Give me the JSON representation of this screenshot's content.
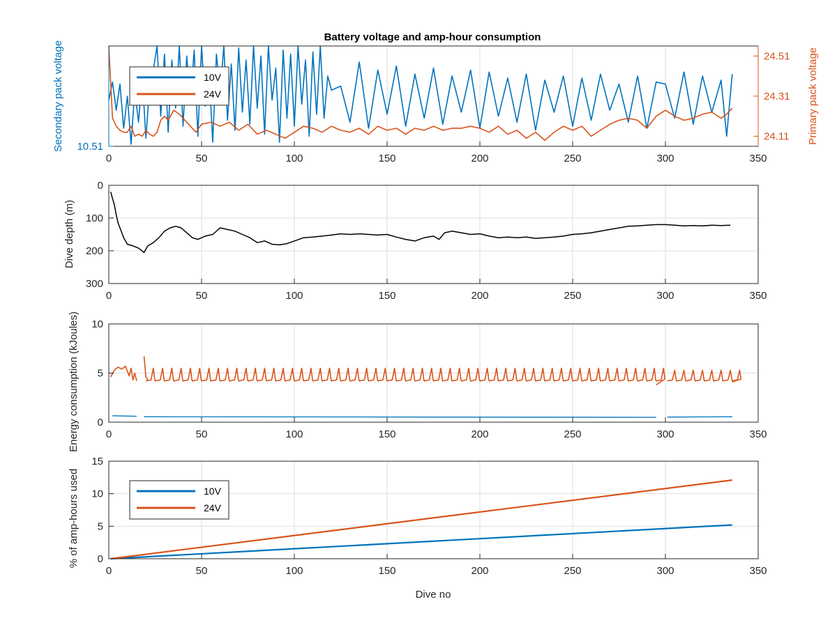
{
  "figure": {
    "xlabel": "Dive no",
    "colors": {
      "blue": "#0072BD",
      "orange": "#D95319",
      "black": "#000000",
      "grid": "#dedede",
      "axis": "#262626"
    }
  },
  "chart_data": [
    {
      "type": "line",
      "title": "Battery voltage and amp-hour consumption",
      "xlabel": "",
      "ylabel_left": "Secondary pack voltage",
      "ylabel_right": "Primary pack voltage",
      "xlim": [
        0,
        350
      ],
      "xticks": [
        0,
        50,
        100,
        150,
        200,
        250,
        300,
        350
      ],
      "ylim_left": [
        10.51,
        10.56
      ],
      "yticks_left": [
        10.51
      ],
      "ylim_right": [
        24.06,
        24.56
      ],
      "yticks_right": [
        24.11,
        24.31,
        24.51
      ],
      "legend": {
        "position": "top-left",
        "entries": [
          "10V",
          "24V"
        ]
      },
      "series": [
        {
          "name": "10V",
          "axis": "left",
          "color": "#0072BD",
          "x": [
            0,
            2,
            4,
            6,
            8,
            10,
            12,
            14,
            16,
            18,
            20,
            22,
            24,
            26,
            28,
            30,
            32,
            34,
            36,
            38,
            40,
            42,
            44,
            46,
            48,
            50,
            52,
            54,
            56,
            58,
            60,
            62,
            64,
            66,
            68,
            70,
            72,
            74,
            76,
            78,
            80,
            82,
            84,
            86,
            88,
            90,
            92,
            94,
            96,
            98,
            100,
            102,
            104,
            106,
            108,
            110,
            112,
            114,
            116,
            118,
            120,
            125,
            130,
            135,
            140,
            145,
            150,
            155,
            160,
            165,
            170,
            175,
            180,
            185,
            190,
            195,
            200,
            205,
            210,
            215,
            220,
            225,
            230,
            235,
            240,
            245,
            250,
            255,
            260,
            265,
            270,
            275,
            280,
            285,
            290,
            295,
            300,
            305,
            310,
            315,
            320,
            325,
            330,
            333,
            336
          ],
          "y": [
            10.533,
            10.542,
            10.528,
            10.541,
            10.519,
            10.535,
            10.511,
            10.538,
            10.522,
            10.545,
            10.514,
            10.54,
            10.548,
            10.56,
            10.525,
            10.556,
            10.517,
            10.553,
            10.529,
            10.56,
            10.52,
            10.555,
            10.532,
            10.558,
            10.515,
            10.56,
            10.53,
            10.548,
            10.512,
            10.556,
            10.536,
            10.56,
            10.523,
            10.551,
            10.518,
            10.559,
            10.527,
            10.553,
            10.521,
            10.56,
            10.529,
            10.555,
            10.516,
            10.56,
            10.533,
            10.549,
            10.512,
            10.558,
            10.524,
            10.556,
            10.52,
            10.56,
            10.531,
            10.553,
            10.515,
            10.557,
            10.526,
            10.56,
            10.524,
            10.545,
            10.538,
            10.54,
            10.522,
            10.552,
            10.519,
            10.548,
            10.526,
            10.55,
            10.52,
            10.546,
            10.524,
            10.549,
            10.521,
            10.545,
            10.527,
            10.548,
            10.519,
            10.547,
            10.525,
            10.544,
            10.522,
            10.546,
            10.518,
            10.543,
            10.527,
            10.545,
            10.52,
            10.544,
            10.523,
            10.546,
            10.528,
            10.541,
            10.522,
            10.545,
            10.519,
            10.542,
            10.541,
            10.524,
            10.547,
            10.521,
            10.545,
            10.527,
            10.543,
            10.515,
            10.546
          ]
        },
        {
          "name": "24V",
          "axis": "right",
          "color": "#D95319",
          "x": [
            0,
            2,
            4,
            6,
            8,
            10,
            12,
            14,
            16,
            18,
            20,
            22,
            24,
            26,
            28,
            30,
            32,
            35,
            38,
            41,
            44,
            47,
            50,
            55,
            60,
            65,
            70,
            75,
            80,
            85,
            90,
            95,
            100,
            105,
            110,
            115,
            120,
            125,
            130,
            135,
            140,
            145,
            150,
            155,
            160,
            165,
            170,
            175,
            180,
            185,
            190,
            195,
            200,
            205,
            210,
            215,
            220,
            225,
            230,
            235,
            240,
            245,
            250,
            255,
            260,
            265,
            270,
            275,
            280,
            285,
            290,
            295,
            300,
            305,
            310,
            315,
            320,
            325,
            330,
            333,
            336
          ],
          "y": [
            24.56,
            24.2,
            24.16,
            24.14,
            24.13,
            24.13,
            24.16,
            24.11,
            24.12,
            24.11,
            24.14,
            24.12,
            24.11,
            24.13,
            24.19,
            24.21,
            24.19,
            24.24,
            24.22,
            24.19,
            24.16,
            24.13,
            24.17,
            24.18,
            24.16,
            24.18,
            24.14,
            24.17,
            24.12,
            24.14,
            24.12,
            24.1,
            24.13,
            24.16,
            24.15,
            24.13,
            24.16,
            24.14,
            24.13,
            24.15,
            24.12,
            24.16,
            24.14,
            24.15,
            24.12,
            24.15,
            24.14,
            24.16,
            24.14,
            24.15,
            24.15,
            24.16,
            24.15,
            24.13,
            24.16,
            24.12,
            24.14,
            24.1,
            24.13,
            24.09,
            24.13,
            24.16,
            24.14,
            24.16,
            24.11,
            24.14,
            24.17,
            24.19,
            24.2,
            24.19,
            24.15,
            24.21,
            24.24,
            24.21,
            24.19,
            24.2,
            24.22,
            24.23,
            24.2,
            24.22,
            24.25
          ]
        }
      ]
    },
    {
      "type": "line",
      "title": "",
      "xlabel": "",
      "ylabel": "Dive depth (m)",
      "xlim": [
        0,
        350
      ],
      "xticks": [
        0,
        50,
        100,
        150,
        200,
        250,
        300,
        350
      ],
      "ylim": [
        0,
        300
      ],
      "yticks": [
        0,
        100,
        200,
        300
      ],
      "y_reversed": true,
      "series": [
        {
          "color": "#000000",
          "x": [
            1,
            2,
            3,
            4,
            5,
            6,
            8,
            10,
            13,
            16,
            19,
            21,
            24,
            27,
            30,
            33,
            36,
            39,
            42,
            45,
            48,
            52,
            56,
            60,
            64,
            68,
            72,
            76,
            80,
            84,
            88,
            92,
            96,
            100,
            105,
            110,
            115,
            120,
            125,
            130,
            135,
            140,
            145,
            150,
            155,
            160,
            165,
            170,
            175,
            178,
            181,
            185,
            190,
            195,
            200,
            205,
            210,
            215,
            220,
            225,
            230,
            235,
            240,
            245,
            250,
            255,
            260,
            265,
            270,
            275,
            280,
            285,
            290,
            295,
            300,
            305,
            310,
            315,
            320,
            325,
            330,
            335
          ],
          "y": [
            20,
            40,
            60,
            90,
            115,
            130,
            160,
            180,
            185,
            192,
            205,
            185,
            175,
            160,
            140,
            130,
            125,
            130,
            145,
            160,
            165,
            155,
            150,
            130,
            135,
            140,
            150,
            160,
            175,
            170,
            180,
            182,
            178,
            170,
            160,
            158,
            155,
            152,
            148,
            150,
            148,
            150,
            152,
            150,
            158,
            165,
            170,
            160,
            155,
            165,
            145,
            140,
            145,
            150,
            148,
            155,
            160,
            158,
            160,
            158,
            162,
            160,
            158,
            155,
            150,
            148,
            145,
            140,
            135,
            130,
            125,
            124,
            122,
            120,
            120,
            122,
            124,
            123,
            124,
            122,
            123,
            122
          ]
        }
      ]
    },
    {
      "type": "line",
      "title": "",
      "xlabel": "",
      "ylabel": "Energy consumption (kJoules)",
      "xlim": [
        0,
        350
      ],
      "xticks": [
        0,
        50,
        100,
        150,
        200,
        250,
        300,
        350
      ],
      "ylim": [
        0,
        10
      ],
      "yticks": [
        0,
        5,
        10
      ],
      "series": [
        {
          "color": "#D95319",
          "segments": [
            {
              "x": [
                1,
                3,
                5,
                7,
                9,
                11,
                12,
                13,
                14,
                15
              ],
              "y": [
                4.6,
                5.3,
                5.6,
                5.4,
                5.7,
                4.7,
                5.5,
                4.3,
                5.0,
                4.2
              ]
            },
            {
              "x": [
                19,
                20,
                21
              ],
              "y": [
                6.7,
                4.6,
                4.3
              ]
            },
            {
              "period": 5,
              "x_start": 20,
              "x_end": 295,
              "base": 4.2,
              "peak": 5.5,
              "end_y": 3.8
            },
            {
              "period": 5,
              "x_start": 301,
              "x_end": 336,
              "base": 4.2,
              "peak": 5.3,
              "end_y": 4.1
            }
          ]
        },
        {
          "color": "#0072BD",
          "segments": [
            {
              "x": [
                2,
                15
              ],
              "y": [
                0.65,
                0.6
              ]
            },
            {
              "x": [
                19,
                295
              ],
              "y": [
                0.55,
                0.5
              ]
            },
            {
              "x": [
                301,
                336
              ],
              "y": [
                0.52,
                0.55
              ]
            }
          ]
        }
      ]
    },
    {
      "type": "line",
      "title": "",
      "xlabel": "Dive no",
      "ylabel": "% of amp-hours used",
      "xlim": [
        0,
        350
      ],
      "xticks": [
        0,
        50,
        100,
        150,
        200,
        250,
        300,
        350
      ],
      "ylim": [
        0,
        15
      ],
      "yticks": [
        0,
        5,
        10,
        15
      ],
      "legend": {
        "position": "top-left",
        "entries": [
          "10V",
          "24V"
        ]
      },
      "series": [
        {
          "name": "10V",
          "color": "#0072BD",
          "x": [
            1,
            336
          ],
          "y": [
            0.0,
            5.2
          ]
        },
        {
          "name": "24V",
          "color": "#D95319",
          "x": [
            1,
            336
          ],
          "y": [
            0.0,
            12.1
          ]
        }
      ]
    }
  ]
}
